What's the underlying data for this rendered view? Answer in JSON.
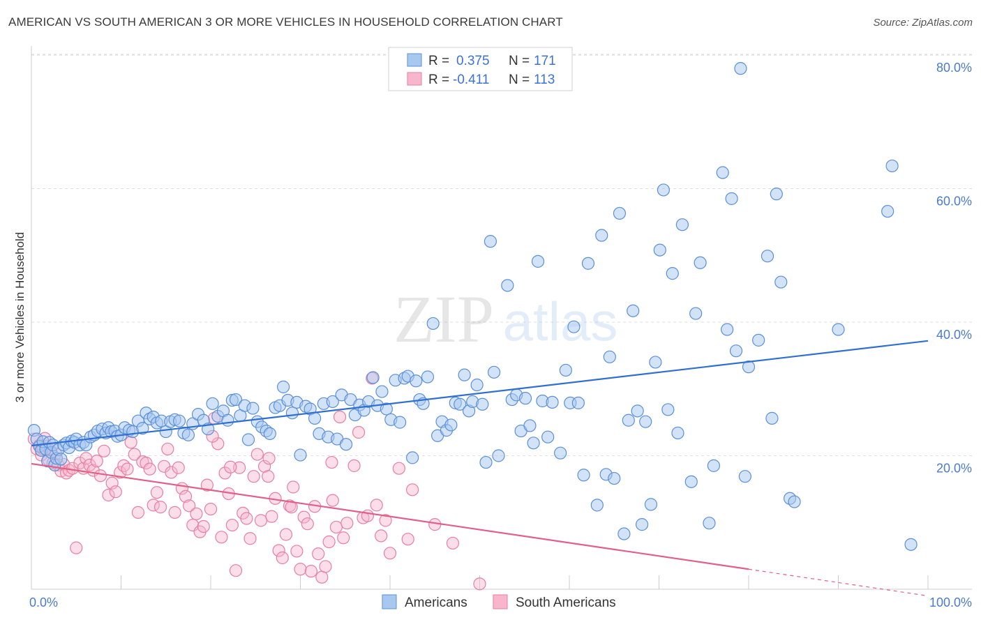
{
  "header": {
    "title": "AMERICAN VS SOUTH AMERICAN 3 OR MORE VEHICLES IN HOUSEHOLD CORRELATION CHART",
    "source": "Source: ZipAtlas.com"
  },
  "watermark": {
    "zip": "ZIP",
    "atlas": "atlas"
  },
  "colors": {
    "blue_fill": "#a8c8f0",
    "blue_stroke": "#5b8fd8",
    "blue_line": "#2f6fd1",
    "pink_fill": "#f7b6cb",
    "pink_stroke": "#e77fa0",
    "pink_line": "#e0608a",
    "grid": "#dddddd",
    "tick_text": "#4a7bd0"
  },
  "legend": {
    "r_label": "R =",
    "n_label": "N =",
    "rows": [
      {
        "r": "0.375",
        "n": "171"
      },
      {
        "r": "-0.411",
        "n": "113"
      }
    ]
  },
  "bottom_legend": [
    "Americans",
    "South Americans"
  ],
  "chart_data": {
    "type": "scatter",
    "title": "AMERICAN VS SOUTH AMERICAN 3 OR MORE VEHICLES IN HOUSEHOLD CORRELATION CHART",
    "xlabel": "",
    "ylabel": "3 or more Vehicles in Household",
    "x_tick_labels": [
      "0.0%",
      "100.0%"
    ],
    "y_tick_labels": [
      "20.0%",
      "40.0%",
      "60.0%",
      "80.0%"
    ],
    "y_ticks": [
      20,
      40,
      60,
      80
    ],
    "xlim": [
      0,
      100
    ],
    "ylim": [
      0,
      83
    ],
    "series": [
      {
        "name": "Americans",
        "r": 0.375,
        "n": 171,
        "trend": {
          "x": [
            0,
            100
          ],
          "y": [
            21.5,
            37.2
          ]
        },
        "points": [
          [
            0.3,
            23.8
          ],
          [
            0.6,
            22.5
          ],
          [
            0.9,
            21.4
          ],
          [
            1.1,
            20.8
          ],
          [
            1.3,
            22.1
          ],
          [
            1.6,
            21.0
          ],
          [
            1.8,
            19.2
          ],
          [
            2.0,
            22.0
          ],
          [
            2.2,
            20.5
          ],
          [
            2.4,
            21.6
          ],
          [
            2.6,
            18.6
          ],
          [
            2.8,
            19.6
          ],
          [
            3.0,
            20.9
          ],
          [
            3.3,
            19.5
          ],
          [
            3.6,
            21.6
          ],
          [
            3.9,
            21.9
          ],
          [
            4.2,
            21.2
          ],
          [
            4.5,
            22.2
          ],
          [
            4.8,
            22.0
          ],
          [
            5.0,
            22.5
          ],
          [
            5.4,
            21.6
          ],
          [
            5.8,
            22.0
          ],
          [
            6.1,
            21.6
          ],
          [
            6.6,
            22.8
          ],
          [
            7.0,
            23.1
          ],
          [
            7.4,
            23.7
          ],
          [
            7.9,
            24.0
          ],
          [
            8.3,
            23.4
          ],
          [
            8.6,
            24.2
          ],
          [
            8.9,
            23.6
          ],
          [
            9.3,
            23.7
          ],
          [
            9.6,
            22.9
          ],
          [
            10.0,
            23.1
          ],
          [
            10.4,
            24.2
          ],
          [
            10.9,
            23.8
          ],
          [
            11.3,
            23.6
          ],
          [
            11.9,
            25.2
          ],
          [
            12.4,
            24.1
          ],
          [
            12.8,
            26.4
          ],
          [
            13.2,
            25.5
          ],
          [
            13.6,
            25.8
          ],
          [
            14.0,
            24.9
          ],
          [
            14.5,
            25.2
          ],
          [
            15.0,
            23.6
          ],
          [
            15.5,
            25.1
          ],
          [
            16.0,
            25.4
          ],
          [
            16.5,
            25.2
          ],
          [
            17.0,
            23.4
          ],
          [
            17.5,
            23.1
          ],
          [
            18.0,
            24.8
          ],
          [
            18.6,
            26.2
          ],
          [
            19.2,
            25.3
          ],
          [
            19.7,
            24.0
          ],
          [
            20.2,
            27.8
          ],
          [
            20.8,
            25.9
          ],
          [
            21.4,
            26.7
          ],
          [
            21.9,
            25.3
          ],
          [
            22.4,
            28.3
          ],
          [
            22.8,
            28.4
          ],
          [
            23.3,
            26.0
          ],
          [
            23.8,
            27.5
          ],
          [
            24.2,
            22.4
          ],
          [
            24.7,
            27.1
          ],
          [
            25.2,
            25.1
          ],
          [
            25.7,
            24.3
          ],
          [
            26.2,
            23.7
          ],
          [
            26.6,
            23.3
          ],
          [
            27.2,
            27.2
          ],
          [
            27.7,
            27.5
          ],
          [
            28.1,
            30.3
          ],
          [
            28.6,
            28.3
          ],
          [
            29.1,
            26.4
          ],
          [
            29.6,
            28.0
          ],
          [
            30.0,
            20.1
          ],
          [
            30.6,
            27.4
          ],
          [
            31.1,
            27.0
          ],
          [
            31.6,
            25.6
          ],
          [
            32.1,
            23.3
          ],
          [
            32.6,
            27.8
          ],
          [
            33.1,
            22.8
          ],
          [
            33.6,
            28.1
          ],
          [
            34.1,
            22.5
          ],
          [
            34.6,
            29.1
          ],
          [
            35.1,
            21.7
          ],
          [
            35.6,
            28.4
          ],
          [
            36.1,
            26.1
          ],
          [
            36.6,
            27.6
          ],
          [
            37.1,
            26.8
          ],
          [
            37.6,
            28.1
          ],
          [
            38.1,
            31.7
          ],
          [
            38.6,
            27.5
          ],
          [
            39.1,
            29.6
          ],
          [
            39.6,
            27.0
          ],
          [
            40.1,
            25.4
          ],
          [
            40.6,
            31.3
          ],
          [
            41.1,
            25.0
          ],
          [
            41.6,
            31.6
          ],
          [
            42.0,
            31.9
          ],
          [
            42.5,
            19.7
          ],
          [
            42.9,
            31.2
          ],
          [
            43.3,
            28.4
          ],
          [
            43.7,
            27.8
          ],
          [
            44.2,
            31.8
          ],
          [
            44.8,
            39.8
          ],
          [
            45.3,
            23.0
          ],
          [
            45.8,
            25.1
          ],
          [
            46.3,
            23.8
          ],
          [
            46.8,
            24.6
          ],
          [
            47.3,
            27.9
          ],
          [
            47.8,
            27.7
          ],
          [
            48.3,
            32.1
          ],
          [
            48.8,
            26.7
          ],
          [
            49.2,
            28.1
          ],
          [
            49.7,
            30.6
          ],
          [
            50.3,
            27.7
          ],
          [
            50.7,
            19.0
          ],
          [
            51.2,
            52.1
          ],
          [
            51.6,
            32.5
          ],
          [
            52.1,
            20.0
          ],
          [
            53.1,
            45.5
          ],
          [
            53.6,
            28.4
          ],
          [
            54.1,
            29.1
          ],
          [
            54.6,
            23.7
          ],
          [
            55.1,
            28.6
          ],
          [
            55.6,
            24.5
          ],
          [
            56.0,
            21.9
          ],
          [
            56.5,
            49.1
          ],
          [
            57.0,
            28.2
          ],
          [
            57.6,
            22.8
          ],
          [
            58.1,
            28.0
          ],
          [
            59.0,
            20.4
          ],
          [
            59.6,
            32.8
          ],
          [
            60.1,
            27.9
          ],
          [
            60.5,
            39.3
          ],
          [
            61.0,
            27.9
          ],
          [
            61.6,
            17.1
          ],
          [
            62.1,
            48.8
          ],
          [
            63.1,
            12.6
          ],
          [
            63.6,
            53.0
          ],
          [
            64.1,
            17.2
          ],
          [
            64.5,
            34.8
          ],
          [
            65.0,
            16.6
          ],
          [
            65.6,
            56.3
          ],
          [
            66.1,
            8.3
          ],
          [
            66.6,
            25.3
          ],
          [
            67.1,
            41.7
          ],
          [
            67.6,
            26.7
          ],
          [
            68.1,
            9.7
          ],
          [
            68.5,
            25.1
          ],
          [
            69.1,
            12.7
          ],
          [
            69.6,
            34.0
          ],
          [
            70.1,
            50.8
          ],
          [
            70.5,
            59.8
          ],
          [
            71.0,
            26.9
          ],
          [
            71.5,
            47.3
          ],
          [
            72.1,
            23.4
          ],
          [
            72.6,
            54.6
          ],
          [
            73.6,
            16.1
          ],
          [
            74.1,
            41.3
          ],
          [
            74.6,
            48.9
          ],
          [
            75.6,
            9.9
          ],
          [
            76.1,
            18.5
          ],
          [
            77.1,
            62.4
          ],
          [
            77.6,
            38.9
          ],
          [
            78.1,
            58.5
          ],
          [
            78.6,
            35.7
          ],
          [
            79.1,
            78.0
          ],
          [
            79.6,
            16.9
          ],
          [
            80.0,
            33.3
          ],
          [
            81.1,
            37.3
          ],
          [
            82.1,
            49.9
          ],
          [
            82.6,
            25.6
          ],
          [
            83.1,
            59.2
          ],
          [
            83.6,
            46.0
          ],
          [
            84.6,
            13.6
          ],
          [
            85.1,
            13.1
          ],
          [
            90.0,
            38.9
          ],
          [
            95.5,
            56.6
          ],
          [
            98.1,
            6.7
          ],
          [
            96.0,
            63.4
          ]
        ]
      },
      {
        "name": "South Americans",
        "r": -0.411,
        "n": 113,
        "trend": {
          "x": [
            0,
            80
          ],
          "y": [
            18.8,
            3.0
          ]
        },
        "trend_dashed": {
          "x": [
            80,
            100
          ],
          "y": [
            3.0,
            -1.0
          ]
        },
        "points": [
          [
            0.3,
            22.5
          ],
          [
            0.6,
            21.0
          ],
          [
            0.9,
            21.6
          ],
          [
            1.1,
            20.1
          ],
          [
            1.3,
            21.0
          ],
          [
            1.5,
            22.6
          ],
          [
            1.7,
            21.4
          ],
          [
            1.9,
            19.4
          ],
          [
            2.1,
            20.8
          ],
          [
            2.4,
            18.9
          ],
          [
            2.7,
            20.3
          ],
          [
            3.0,
            18.6
          ],
          [
            3.3,
            17.7
          ],
          [
            3.6,
            18.7
          ],
          [
            3.9,
            17.4
          ],
          [
            4.2,
            17.8
          ],
          [
            4.6,
            18.1
          ],
          [
            5.0,
            6.2
          ],
          [
            5.4,
            18.9
          ],
          [
            5.8,
            18.1
          ],
          [
            6.1,
            19.6
          ],
          [
            6.5,
            18.6
          ],
          [
            6.9,
            17.8
          ],
          [
            7.3,
            19.2
          ],
          [
            7.7,
            17.0
          ],
          [
            8.1,
            20.7
          ],
          [
            8.6,
            14.1
          ],
          [
            9.0,
            15.9
          ],
          [
            9.4,
            14.6
          ],
          [
            9.9,
            17.5
          ],
          [
            10.3,
            18.5
          ],
          [
            10.7,
            18.0
          ],
          [
            11.1,
            22.0
          ],
          [
            11.5,
            20.2
          ],
          [
            11.9,
            11.5
          ],
          [
            12.4,
            19.1
          ],
          [
            12.8,
            18.9
          ],
          [
            13.2,
            18.0
          ],
          [
            13.6,
            12.6
          ],
          [
            14.0,
            14.5
          ],
          [
            14.4,
            12.3
          ],
          [
            14.8,
            18.4
          ],
          [
            15.2,
            21.0
          ],
          [
            15.6,
            17.5
          ],
          [
            16.0,
            11.5
          ],
          [
            16.4,
            18.2
          ],
          [
            16.8,
            15.1
          ],
          [
            17.2,
            13.9
          ],
          [
            17.6,
            12.5
          ],
          [
            18.0,
            9.6
          ],
          [
            18.4,
            11.3
          ],
          [
            18.8,
            8.6
          ],
          [
            19.2,
            9.4
          ],
          [
            19.6,
            15.6
          ],
          [
            20.0,
            12.0
          ],
          [
            20.4,
            25.6
          ],
          [
            20.8,
            21.8
          ],
          [
            21.2,
            7.8
          ],
          [
            21.6,
            17.4
          ],
          [
            22.0,
            14.3
          ],
          [
            22.4,
            9.6
          ],
          [
            22.8,
            2.8
          ],
          [
            23.2,
            18.2
          ],
          [
            23.6,
            11.4
          ],
          [
            24.0,
            10.6
          ],
          [
            24.4,
            7.6
          ],
          [
            24.8,
            16.9
          ],
          [
            25.2,
            20.2
          ],
          [
            25.6,
            10.3
          ],
          [
            26.0,
            18.4
          ],
          [
            26.4,
            16.9
          ],
          [
            26.8,
            10.9
          ],
          [
            27.2,
            13.6
          ],
          [
            27.6,
            5.8
          ],
          [
            28.0,
            4.7
          ],
          [
            28.4,
            8.2
          ],
          [
            28.8,
            12.5
          ],
          [
            29.2,
            15.3
          ],
          [
            29.6,
            5.7
          ],
          [
            30.0,
            3.0
          ],
          [
            30.4,
            10.8
          ],
          [
            30.8,
            9.8
          ],
          [
            31.2,
            2.7
          ],
          [
            31.6,
            12.4
          ],
          [
            32.0,
            5.3
          ],
          [
            32.4,
            1.8
          ],
          [
            32.8,
            3.4
          ],
          [
            33.2,
            7.1
          ],
          [
            33.6,
            13.3
          ],
          [
            34.0,
            9.3
          ],
          [
            34.4,
            25.8
          ],
          [
            34.8,
            7.7
          ],
          [
            35.2,
            9.9
          ],
          [
            36.0,
            18.5
          ],
          [
            37.0,
            10.7
          ],
          [
            38.5,
            12.6
          ],
          [
            39.0,
            8.0
          ],
          [
            39.5,
            10.3
          ],
          [
            40.0,
            5.4
          ],
          [
            41.0,
            18.1
          ],
          [
            42.0,
            7.5
          ],
          [
            42.5,
            14.9
          ],
          [
            45.0,
            9.7
          ],
          [
            47.0,
            6.9
          ],
          [
            50.0,
            0.8
          ],
          [
            20.2,
            22.9
          ],
          [
            22.2,
            18.3
          ],
          [
            26.5,
            19.6
          ],
          [
            29.0,
            12.3
          ],
          [
            33.5,
            19.0
          ],
          [
            36.5,
            23.5
          ],
          [
            37.5,
            11.0
          ],
          [
            38.0,
            31.6
          ]
        ]
      }
    ]
  }
}
